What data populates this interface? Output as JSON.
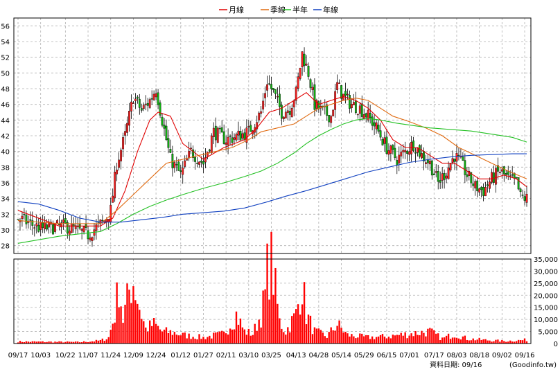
{
  "chart_data": {
    "type": "candlestick",
    "legend": {
      "placement": "top-center",
      "items": [
        {
          "label": "月線",
          "color": "#e00000"
        },
        {
          "label": "季線",
          "color": "#e06a10"
        },
        {
          "label": "半年",
          "color": "#22c022"
        },
        {
          "label": "年線",
          "color": "#1040c0"
        }
      ]
    },
    "price_axis": {
      "ylim": [
        27,
        57
      ],
      "ticks": [
        28,
        30,
        32,
        34,
        36,
        38,
        40,
        42,
        44,
        46,
        48,
        50,
        52,
        54,
        56
      ],
      "placement": "left"
    },
    "volume_axis": {
      "ylim": [
        0,
        35000
      ],
      "ticks": [
        0,
        5000,
        10000,
        15000,
        20000,
        25000,
        30000,
        35000
      ],
      "tick_labels": [
        "0",
        "5,000",
        "10,000",
        "15,000",
        "20,000",
        "25,000",
        "30,000",
        "35,000"
      ],
      "placement": "right"
    },
    "x_ticks": [
      {
        "label": "09/17",
        "i": 0
      },
      {
        "label": "10/03",
        "i": 11
      },
      {
        "label": "10/22",
        "i": 23
      },
      {
        "label": "11/07",
        "i": 34
      },
      {
        "label": "11/24",
        "i": 45
      },
      {
        "label": "12/09",
        "i": 56
      },
      {
        "label": "12/24",
        "i": 67
      },
      {
        "label": "01/12",
        "i": 79
      },
      {
        "label": "01/27",
        "i": 90
      },
      {
        "label": "02/11",
        "i": 101
      },
      {
        "label": "03/10",
        "i": 112
      },
      {
        "label": "03/25",
        "i": 123
      },
      {
        "label": "04/13",
        "i": 135
      },
      {
        "label": "04/28",
        "i": 146
      },
      {
        "label": "05/14",
        "i": 157
      },
      {
        "label": "05/29",
        "i": 168
      },
      {
        "label": "06/15",
        "i": 179
      },
      {
        "label": "07/01",
        "i": 190
      },
      {
        "label": "07/17",
        "i": 202
      },
      {
        "label": "08/03",
        "i": 213
      },
      {
        "label": "08/18",
        "i": 224
      },
      {
        "label": "09/02",
        "i": 235
      },
      {
        "label": "09/16",
        "i": 246
      }
    ],
    "n_sessions": 248,
    "close_path": [
      [
        0,
        31.5
      ],
      [
        11,
        30.2
      ],
      [
        23,
        30.5
      ],
      [
        34,
        29.4
      ],
      [
        42,
        31.2
      ],
      [
        45,
        32.5
      ],
      [
        48,
        38.5
      ],
      [
        52,
        42.0
      ],
      [
        56,
        47.0
      ],
      [
        60,
        45.2
      ],
      [
        64,
        46.5
      ],
      [
        67,
        48.0
      ],
      [
        70,
        44.0
      ],
      [
        74,
        39.0
      ],
      [
        79,
        37.0
      ],
      [
        84,
        40.0
      ],
      [
        90,
        38.5
      ],
      [
        95,
        42.5
      ],
      [
        101,
        41.5
      ],
      [
        107,
        42.0
      ],
      [
        112,
        42.5
      ],
      [
        118,
        45.0
      ],
      [
        121,
        49.0
      ],
      [
        124,
        47.5
      ],
      [
        128,
        45.0
      ],
      [
        132,
        45.5
      ],
      [
        135,
        47.5
      ],
      [
        138,
        52.5
      ],
      [
        141,
        50.0
      ],
      [
        144,
        46.0
      ],
      [
        148,
        45.0
      ],
      [
        152,
        44.5
      ],
      [
        155,
        48.5
      ],
      [
        158,
        47.0
      ],
      [
        162,
        46.0
      ],
      [
        166,
        45.5
      ],
      [
        170,
        44.5
      ],
      [
        174,
        43.0
      ],
      [
        179,
        40.5
      ],
      [
        184,
        39.0
      ],
      [
        188,
        40.0
      ],
      [
        192,
        41.0
      ],
      [
        196,
        39.5
      ],
      [
        200,
        38.5
      ],
      [
        204,
        36.0
      ],
      [
        208,
        37.5
      ],
      [
        212,
        39.5
      ],
      [
        215,
        38.5
      ],
      [
        218,
        37.0
      ],
      [
        222,
        35.5
      ],
      [
        226,
        35.0
      ],
      [
        230,
        36.5
      ],
      [
        234,
        37.5
      ],
      [
        238,
        36.5
      ],
      [
        242,
        36.0
      ],
      [
        244,
        34.2
      ],
      [
        247,
        34.0
      ]
    ],
    "ma_month": [
      [
        0,
        32.5
      ],
      [
        20,
        30.5
      ],
      [
        40,
        30.5
      ],
      [
        46,
        31.5
      ],
      [
        52,
        35.0
      ],
      [
        58,
        40.0
      ],
      [
        64,
        44.0
      ],
      [
        68,
        45.0
      ],
      [
        74,
        44.5
      ],
      [
        80,
        41.0
      ],
      [
        90,
        39.0
      ],
      [
        100,
        40.5
      ],
      [
        110,
        41.5
      ],
      [
        116,
        43.0
      ],
      [
        122,
        45.0
      ],
      [
        128,
        45.5
      ],
      [
        134,
        46.5
      ],
      [
        140,
        47.5
      ],
      [
        146,
        46.0
      ],
      [
        152,
        46.5
      ],
      [
        158,
        47.0
      ],
      [
        164,
        46.5
      ],
      [
        170,
        45.5
      ],
      [
        176,
        44.0
      ],
      [
        182,
        41.5
      ],
      [
        188,
        40.5
      ],
      [
        194,
        40.5
      ],
      [
        200,
        39.5
      ],
      [
        206,
        38.5
      ],
      [
        212,
        38.5
      ],
      [
        218,
        37.5
      ],
      [
        224,
        36.5
      ],
      [
        230,
        36.5
      ],
      [
        236,
        37.0
      ],
      [
        242,
        36.5
      ],
      [
        247,
        35.5
      ]
    ],
    "ma_quarter": [
      [
        0,
        31.2
      ],
      [
        20,
        30.8
      ],
      [
        40,
        30.8
      ],
      [
        48,
        32.5
      ],
      [
        56,
        34.5
      ],
      [
        64,
        36.5
      ],
      [
        72,
        38.5
      ],
      [
        80,
        39.0
      ],
      [
        88,
        39.5
      ],
      [
        96,
        40.0
      ],
      [
        104,
        40.5
      ],
      [
        112,
        41.5
      ],
      [
        118,
        42.5
      ],
      [
        126,
        43.0
      ],
      [
        134,
        43.5
      ],
      [
        140,
        44.5
      ],
      [
        146,
        45.5
      ],
      [
        152,
        46.0
      ],
      [
        158,
        46.5
      ],
      [
        164,
        46.8
      ],
      [
        170,
        46.5
      ],
      [
        176,
        45.5
      ],
      [
        182,
        44.5
      ],
      [
        190,
        43.8
      ],
      [
        198,
        43.0
      ],
      [
        206,
        42.0
      ],
      [
        214,
        40.5
      ],
      [
        222,
        39.5
      ],
      [
        230,
        38.5
      ],
      [
        238,
        37.5
      ],
      [
        247,
        36.5
      ]
    ],
    "ma_half": [
      [
        0,
        28.3
      ],
      [
        20,
        29.2
      ],
      [
        40,
        29.8
      ],
      [
        48,
        30.8
      ],
      [
        56,
        32.0
      ],
      [
        64,
        33.0
      ],
      [
        72,
        33.8
      ],
      [
        80,
        34.5
      ],
      [
        90,
        35.3
      ],
      [
        100,
        36.0
      ],
      [
        110,
        36.8
      ],
      [
        118,
        37.5
      ],
      [
        126,
        38.5
      ],
      [
        134,
        39.8
      ],
      [
        140,
        41.0
      ],
      [
        146,
        42.0
      ],
      [
        152,
        42.8
      ],
      [
        158,
        43.5
      ],
      [
        164,
        44.0
      ],
      [
        170,
        44.2
      ],
      [
        176,
        44.0
      ],
      [
        184,
        43.6
      ],
      [
        192,
        43.3
      ],
      [
        200,
        43.0
      ],
      [
        210,
        42.8
      ],
      [
        220,
        42.6
      ],
      [
        230,
        42.2
      ],
      [
        240,
        41.8
      ],
      [
        247,
        41.2
      ]
    ],
    "ma_year": [
      [
        0,
        33.6
      ],
      [
        10,
        33.3
      ],
      [
        20,
        32.5
      ],
      [
        30,
        31.5
      ],
      [
        40,
        31.0
      ],
      [
        50,
        31.0
      ],
      [
        60,
        31.3
      ],
      [
        70,
        31.6
      ],
      [
        80,
        32.0
      ],
      [
        90,
        32.2
      ],
      [
        100,
        32.4
      ],
      [
        110,
        32.8
      ],
      [
        120,
        33.5
      ],
      [
        130,
        34.3
      ],
      [
        140,
        35.0
      ],
      [
        150,
        35.8
      ],
      [
        160,
        36.6
      ],
      [
        170,
        37.4
      ],
      [
        180,
        38.0
      ],
      [
        190,
        38.6
      ],
      [
        200,
        39.0
      ],
      [
        210,
        39.3
      ],
      [
        220,
        39.5
      ],
      [
        230,
        39.6
      ],
      [
        240,
        39.7
      ],
      [
        247,
        39.7
      ]
    ],
    "volume_path": [
      [
        0,
        800
      ],
      [
        30,
        600
      ],
      [
        40,
        1200
      ],
      [
        44,
        2500
      ],
      [
        47,
        12000
      ],
      [
        49,
        25000
      ],
      [
        51,
        10000
      ],
      [
        54,
        22000
      ],
      [
        56,
        26000
      ],
      [
        59,
        15000
      ],
      [
        62,
        6000
      ],
      [
        66,
        8000
      ],
      [
        70,
        5000
      ],
      [
        76,
        4500
      ],
      [
        80,
        3500
      ],
      [
        90,
        2500
      ],
      [
        100,
        4000
      ],
      [
        106,
        12000
      ],
      [
        110,
        5000
      ],
      [
        114,
        4000
      ],
      [
        118,
        12000
      ],
      [
        120,
        20000
      ],
      [
        121,
        30000
      ],
      [
        123,
        34000
      ],
      [
        125,
        22000
      ],
      [
        127,
        9000
      ],
      [
        130,
        5000
      ],
      [
        135,
        12000
      ],
      [
        138,
        25000
      ],
      [
        140,
        12000
      ],
      [
        144,
        5000
      ],
      [
        150,
        3000
      ],
      [
        155,
        8000
      ],
      [
        160,
        3500
      ],
      [
        170,
        2500
      ],
      [
        180,
        3000
      ],
      [
        190,
        4000
      ],
      [
        200,
        5000
      ],
      [
        206,
        2000
      ],
      [
        212,
        4000
      ],
      [
        218,
        2000
      ],
      [
        226,
        1500
      ],
      [
        236,
        1000
      ],
      [
        247,
        1500
      ]
    ]
  },
  "footer": {
    "date_label": "資料日期: 09/16",
    "source": "(Goodinfo.tw)"
  }
}
